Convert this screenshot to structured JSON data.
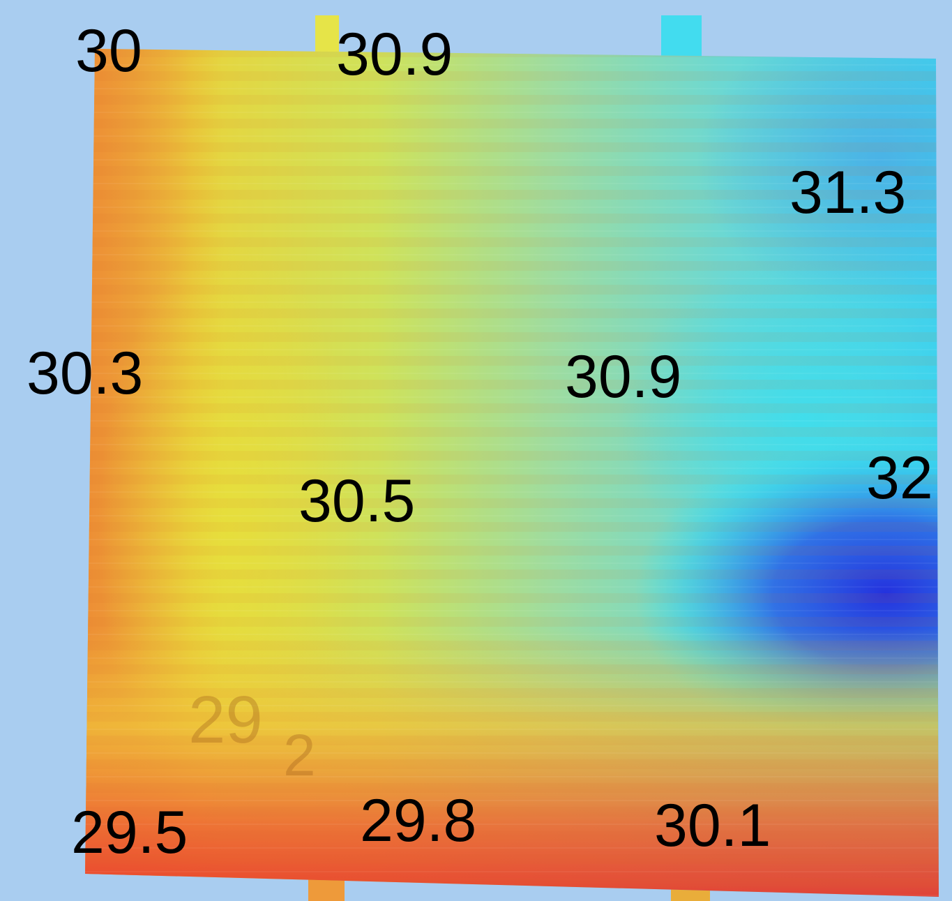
{
  "map": {
    "colormap": [
      "#e8312a",
      "#f07a32",
      "#e8c83a",
      "#dfe040",
      "#b6e06a",
      "#8fdcb0",
      "#3ee4f0",
      "#2aa8ee",
      "#2b3ee0"
    ],
    "background_color": "#a9cdf0",
    "sounding_labels": [
      {
        "id": "nw",
        "value": "30"
      },
      {
        "id": "n",
        "value": "30.9"
      },
      {
        "id": "ne",
        "value": "31.3"
      },
      {
        "id": "w",
        "value": "30.3"
      },
      {
        "id": "center-east",
        "value": "30.9"
      },
      {
        "id": "center-west",
        "value": "30.5"
      },
      {
        "id": "e",
        "value": "32"
      },
      {
        "id": "sw",
        "value": "29.5"
      },
      {
        "id": "s",
        "value": "29.8"
      },
      {
        "id": "se",
        "value": "30.1"
      }
    ],
    "faint_label": {
      "main": "29",
      "sub": "2"
    }
  }
}
